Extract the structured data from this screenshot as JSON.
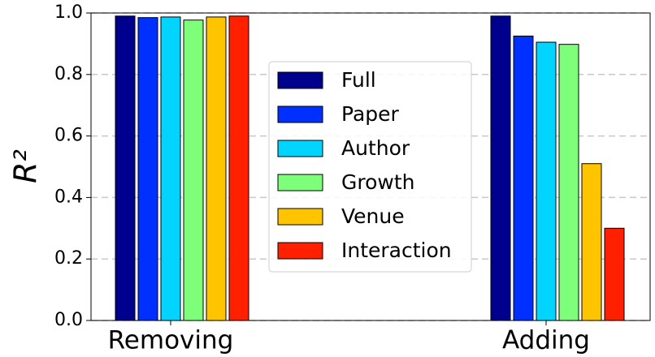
{
  "chart_data": {
    "type": "bar",
    "ylabel": "R²",
    "categories": [
      "Removing",
      "Adding"
    ],
    "series": [
      {
        "name": "Full",
        "color": "#00008f",
        "values": [
          0.99,
          0.99
        ]
      },
      {
        "name": "Paper",
        "color": "#0030ff",
        "values": [
          0.985,
          0.925
        ]
      },
      {
        "name": "Author",
        "color": "#00d4ff",
        "values": [
          0.987,
          0.905
        ]
      },
      {
        "name": "Growth",
        "color": "#7dff7a",
        "values": [
          0.977,
          0.898
        ]
      },
      {
        "name": "Venue",
        "color": "#ffc400",
        "values": [
          0.987,
          0.51
        ]
      },
      {
        "name": "Interaction",
        "color": "#ff2000",
        "values": [
          0.99,
          0.3
        ]
      }
    ],
    "ylim": [
      0,
      1
    ],
    "yticks": [
      {
        "value": 0,
        "label": "0.0"
      },
      0.2,
      0.4,
      0.6,
      0.8,
      {
        "value": 1,
        "label": "1.0"
      }
    ],
    "grid": true,
    "legend": "center"
  }
}
